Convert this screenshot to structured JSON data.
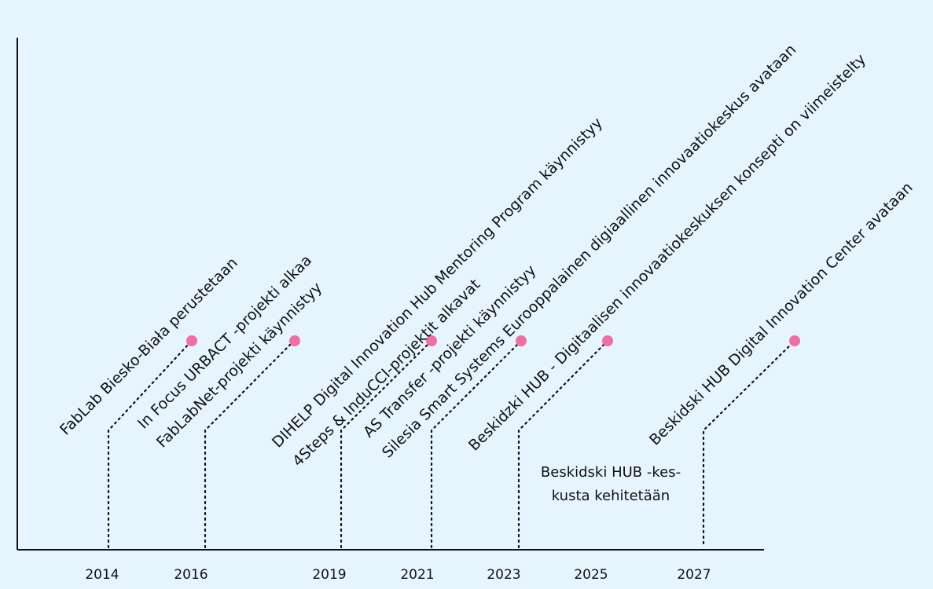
{
  "timeline": {
    "years": [
      "2014",
      "2016",
      "2019",
      "2021",
      "2023",
      "2025",
      "2027"
    ],
    "dots_color": "#ee6fa4",
    "events": [
      {
        "label": "FabLab Biesko-Biała perustetaan"
      },
      {
        "label": "In Focus URBACT -projekti alkaa"
      },
      {
        "label": "FabLabNet-projekti käynnistyy"
      },
      {
        "label": "DIHELP Digital Innovation Hub Mentoring  Program käynnistyy"
      },
      {
        "label": "4Steps & InduCCI-projektit alkavat"
      },
      {
        "label": "AS Transfer -projekti käynnistyy"
      },
      {
        "label": "Silesia Smart Systems Eurooppalainen digiaallinen innovaatiokeskus avataan"
      },
      {
        "label": "Beskidzki HUB - Digitaalisen innovaatiokeskuksen konsepti on viimeistelty"
      },
      {
        "label": "Beskidski HUB Digital Innovation Center avataan"
      }
    ],
    "note": {
      "line1": "Beskidski HUB -kes-",
      "line2": "kusta kehitetään"
    }
  }
}
